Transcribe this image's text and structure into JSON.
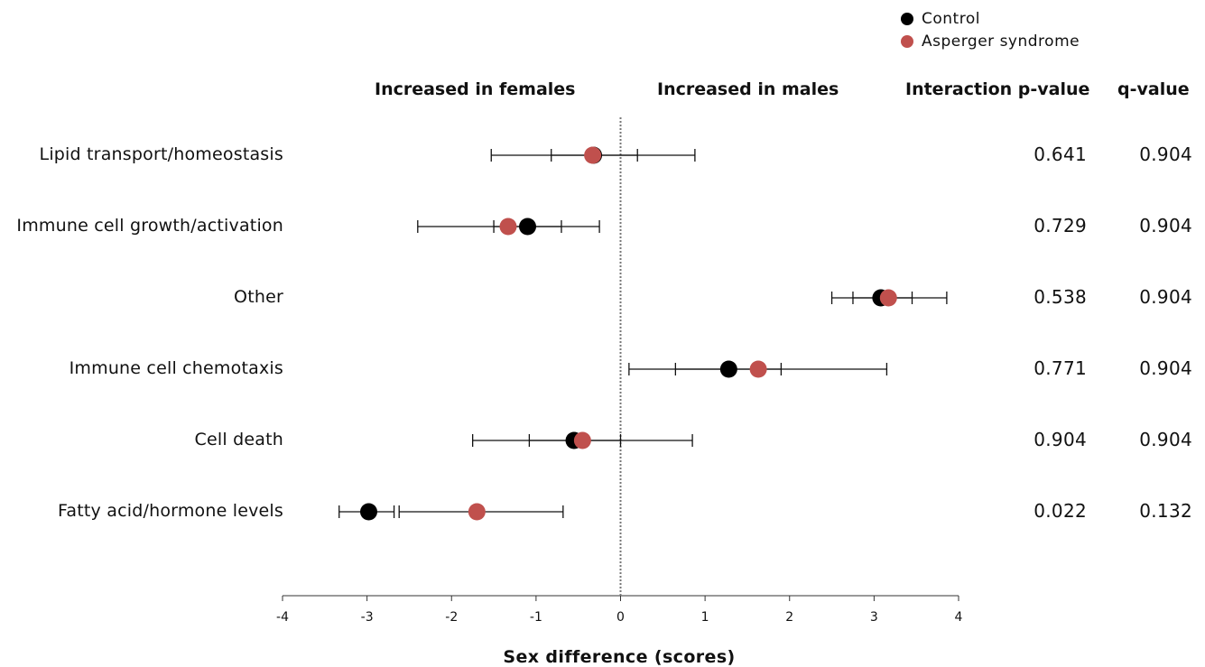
{
  "legend": {
    "placement": "top-right",
    "items": [
      {
        "label": "Control",
        "color": "#000000"
      },
      {
        "label": "Asperger syndrome",
        "color": "#c0504d"
      }
    ]
  },
  "headers": {
    "left": "Increased in females",
    "right": "Increased in males",
    "pvalue": "Interaction p-value",
    "qvalue": "q-value"
  },
  "chart_data": {
    "type": "scatter",
    "orientation": "horizontal",
    "xlabel": "Sex difference (scores)",
    "xlim": [
      -4,
      4
    ],
    "xticks": [
      -4,
      -3,
      -2,
      -1,
      0,
      1,
      2,
      3,
      4
    ],
    "reference_line_x": 0,
    "grid": false,
    "series": [
      {
        "name": "Control",
        "color": "#000000"
      },
      {
        "name": "Asperger syndrome",
        "color": "#c0504d"
      }
    ],
    "rows": [
      {
        "label": "Lipid transport/homeostasis",
        "control": {
          "value": -0.32,
          "ci": [
            -1.53,
            0.88
          ]
        },
        "asperger": {
          "value": -0.33,
          "ci": [
            -0.82,
            0.2
          ]
        },
        "p_value": "0.641",
        "q_value": "0.904"
      },
      {
        "label": "Immune cell growth/activation",
        "control": {
          "value": -1.1,
          "ci": [
            -2.4,
            -0.25
          ]
        },
        "asperger": {
          "value": -1.33,
          "ci": [
            -1.5,
            -0.7
          ]
        },
        "p_value": "0.729",
        "q_value": "0.904"
      },
      {
        "label": "Other",
        "control": {
          "value": 3.08,
          "ci": [
            2.5,
            3.86
          ]
        },
        "asperger": {
          "value": 3.17,
          "ci": [
            2.75,
            3.45
          ]
        },
        "p_value": "0.538",
        "q_value": "0.904"
      },
      {
        "label": "Immune cell chemotaxis",
        "control": {
          "value": 1.28,
          "ci": [
            0.1,
            3.15
          ]
        },
        "asperger": {
          "value": 1.63,
          "ci": [
            0.65,
            1.9
          ]
        },
        "p_value": "0.771",
        "q_value": "0.904"
      },
      {
        "label": "Cell death",
        "control": {
          "value": -0.55,
          "ci": [
            -1.75,
            0.85
          ]
        },
        "asperger": {
          "value": -0.45,
          "ci": [
            -1.08,
            0.0
          ]
        },
        "p_value": "0.904",
        "q_value": "0.904"
      },
      {
        "label": "Fatty acid/hormone levels",
        "control": {
          "value": -2.98,
          "ci": [
            -3.33,
            -2.68
          ]
        },
        "asperger": {
          "value": -1.7,
          "ci": [
            -2.62,
            -0.68
          ]
        },
        "p_value": "0.022",
        "q_value": "0.132"
      }
    ]
  }
}
